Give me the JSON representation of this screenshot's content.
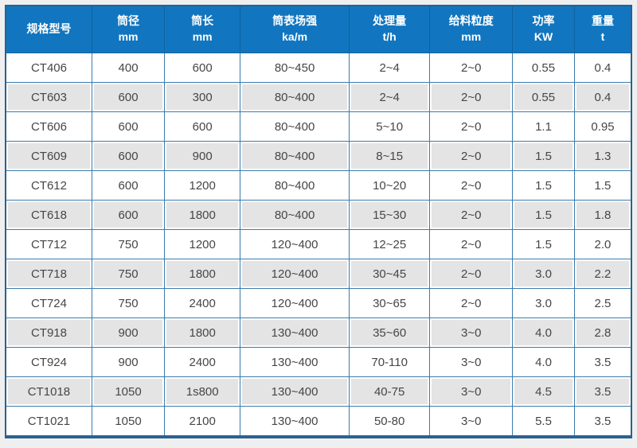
{
  "colors": {
    "page_background": "#efefef",
    "header_background": "#1176bf",
    "header_separator": "#0d62a0",
    "grid_border": "#3a7cab",
    "outer_border": "#2a6191",
    "alt_row_background": "#e4e4e4",
    "row_background": "#ffffff",
    "header_text": "#ffffff",
    "body_text": "#464646"
  },
  "table": {
    "headers": [
      {
        "label": "规格型号",
        "unit": ""
      },
      {
        "label": "筒径",
        "unit": "mm"
      },
      {
        "label": "筒长",
        "unit": "mm"
      },
      {
        "label": "筒表场强",
        "unit": "ka/m"
      },
      {
        "label": "处理量",
        "unit": "t/h"
      },
      {
        "label": "给料粒度",
        "unit": "mm"
      },
      {
        "label": "功率",
        "unit": "KW"
      },
      {
        "label": "重量",
        "unit": "t"
      }
    ],
    "rows": [
      [
        "CT406",
        "400",
        "600",
        "80~450",
        "2~4",
        "2~0",
        "0.55",
        "0.4"
      ],
      [
        "CT603",
        "600",
        "300",
        "80~400",
        "2~4",
        "2~0",
        "0.55",
        "0.4"
      ],
      [
        "CT606",
        "600",
        "600",
        "80~400",
        "5~10",
        "2~0",
        "1.1",
        "0.95"
      ],
      [
        "CT609",
        "600",
        "900",
        "80~400",
        "8~15",
        "2~0",
        "1.5",
        "1.3"
      ],
      [
        "CT612",
        "600",
        "1200",
        "80~400",
        "10~20",
        "2~0",
        "1.5",
        "1.5"
      ],
      [
        "CT618",
        "600",
        "1800",
        "80~400",
        "15~30",
        "2~0",
        "1.5",
        "1.8"
      ],
      [
        "CT712",
        "750",
        "1200",
        "120~400",
        "12~25",
        "2~0",
        "1.5",
        "2.0"
      ],
      [
        "CT718",
        "750",
        "1800",
        "120~400",
        "30~45",
        "2~0",
        "3.0",
        "2.2"
      ],
      [
        "CT724",
        "750",
        "2400",
        "120~400",
        "30~65",
        "2~0",
        "3.0",
        "2.5"
      ],
      [
        "CT918",
        "900",
        "1800",
        "130~400",
        "35~60",
        "3~0",
        "4.0",
        "2.8"
      ],
      [
        "CT924",
        "900",
        "2400",
        "130~400",
        "70-110",
        "3~0",
        "4.0",
        "3.5"
      ],
      [
        "CT1018",
        "1050",
        "1s800",
        "130~400",
        "40-75",
        "3~0",
        "4.5",
        "3.5"
      ],
      [
        "CT1021",
        "1050",
        "2100",
        "130~400",
        "50-80",
        "3~0",
        "5.5",
        "3.5"
      ]
    ]
  }
}
